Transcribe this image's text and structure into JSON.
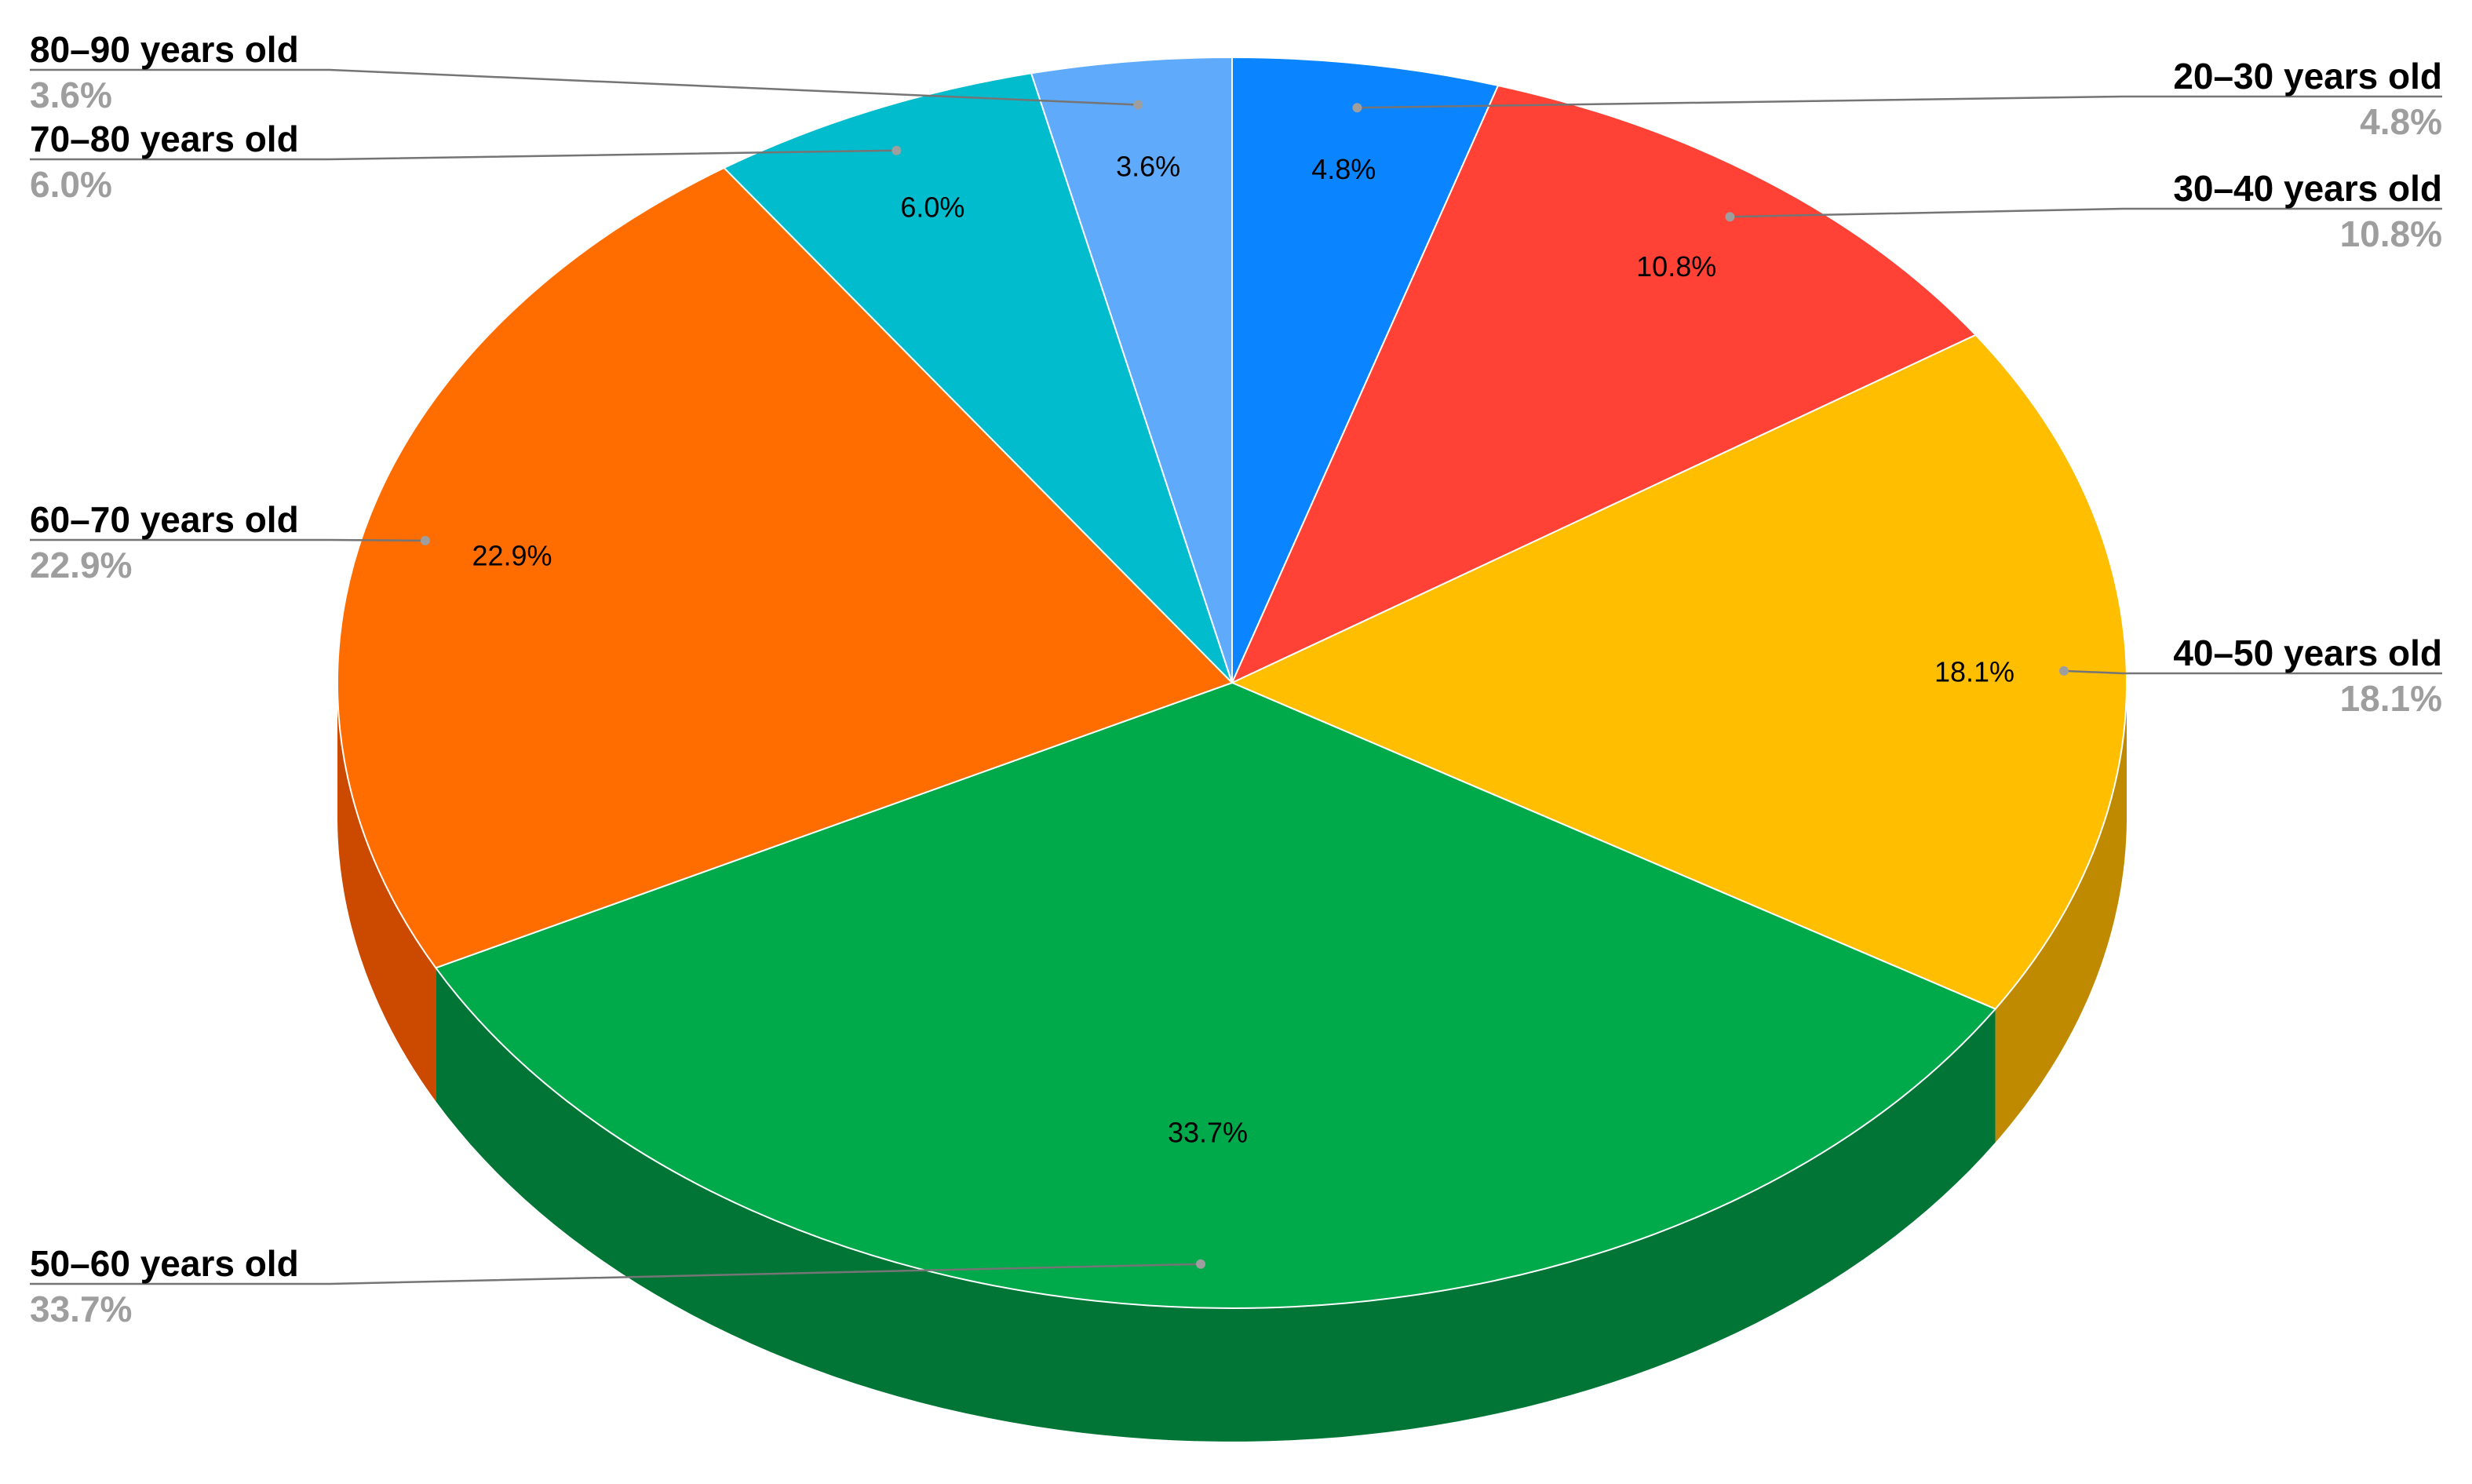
{
  "chart_data": {
    "type": "pie",
    "style": "3d",
    "title": "",
    "slices": [
      {
        "label": "20–30 years old",
        "value": 4.8,
        "display": "4.8%",
        "color": "#0a84ff",
        "side_color": "#0666cc"
      },
      {
        "label": "30–40 years old",
        "value": 10.8,
        "display": "10.8%",
        "color": "#ff4136",
        "side_color": "#c72f26"
      },
      {
        "label": "40–50 years old",
        "value": 18.1,
        "display": "18.1%",
        "color": "#ffbe00",
        "side_color": "#c08a00"
      },
      {
        "label": "50–60 years old",
        "value": 33.7,
        "display": "33.7%",
        "color": "#00a94a",
        "side_color": "#007535"
      },
      {
        "label": "60–70 years old",
        "value": 22.9,
        "display": "22.9%",
        "color": "#ff6d00",
        "side_color": "#cc4a00"
      },
      {
        "label": "70–80 years old",
        "value": 6.0,
        "display": "6.0%",
        "color": "#00bccc",
        "side_color": "#008a96"
      },
      {
        "label": "80–90 years old",
        "value": 3.6,
        "display": "3.6%",
        "color": "#60aafc",
        "side_color": "#3f7fc4"
      }
    ],
    "legend": "outside labels with leader lines",
    "start_angle": "12 o'clock",
    "direction": "clockwise"
  }
}
